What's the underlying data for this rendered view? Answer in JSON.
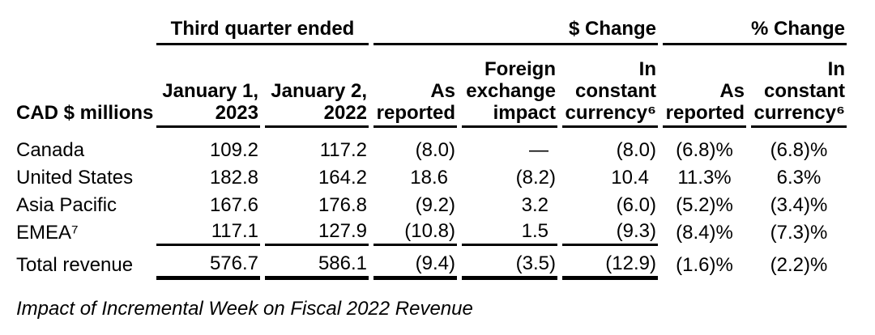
{
  "table": {
    "row_label_header": "CAD $ millions",
    "group_headers": {
      "period": "Third quarter ended",
      "dollar_change": "$ Change",
      "percent_change": "% Change"
    },
    "column_headers": [
      "January 1,\n2023",
      "January 2,\n2022",
      "As\nreported",
      "Foreign\nexchange\nimpact",
      "In\nconstant\ncurrency⁶",
      "As\nreported",
      "In\nconstant\ncurrency⁶"
    ],
    "rows": [
      {
        "label": "Canada",
        "values": [
          "109.2",
          "117.2",
          "(8.0)",
          "—",
          "(8.0)",
          "(6.8)%",
          "(6.8)%"
        ],
        "rule": "none"
      },
      {
        "label": "United States",
        "values": [
          "182.8",
          "164.2",
          "18.6",
          "(8.2)",
          "10.4",
          "11.3%",
          "6.3%"
        ],
        "rule": "none"
      },
      {
        "label": "Asia Pacific",
        "values": [
          "167.6",
          "176.8",
          "(9.2)",
          "3.2",
          "(6.0)",
          "(5.2)%",
          "(3.4)%"
        ],
        "rule": "none"
      },
      {
        "label": "EMEA⁷",
        "values": [
          "117.1",
          "127.9",
          "(10.8)",
          "1.5",
          "(9.3)",
          "(8.4)%",
          "(7.3)%"
        ],
        "rule": "single"
      },
      {
        "label": "Total revenue",
        "values": [
          "576.7",
          "586.1",
          "(9.4)",
          "(3.5)",
          "(12.9)",
          "(1.6)%",
          "(2.2)%"
        ],
        "rule": "double"
      }
    ]
  },
  "footer": {
    "caption": "Impact of Incremental Week on Fiscal 2022 Revenue"
  },
  "colors": {
    "text": "#000000",
    "background": "#ffffff",
    "rule": "#000000"
  }
}
